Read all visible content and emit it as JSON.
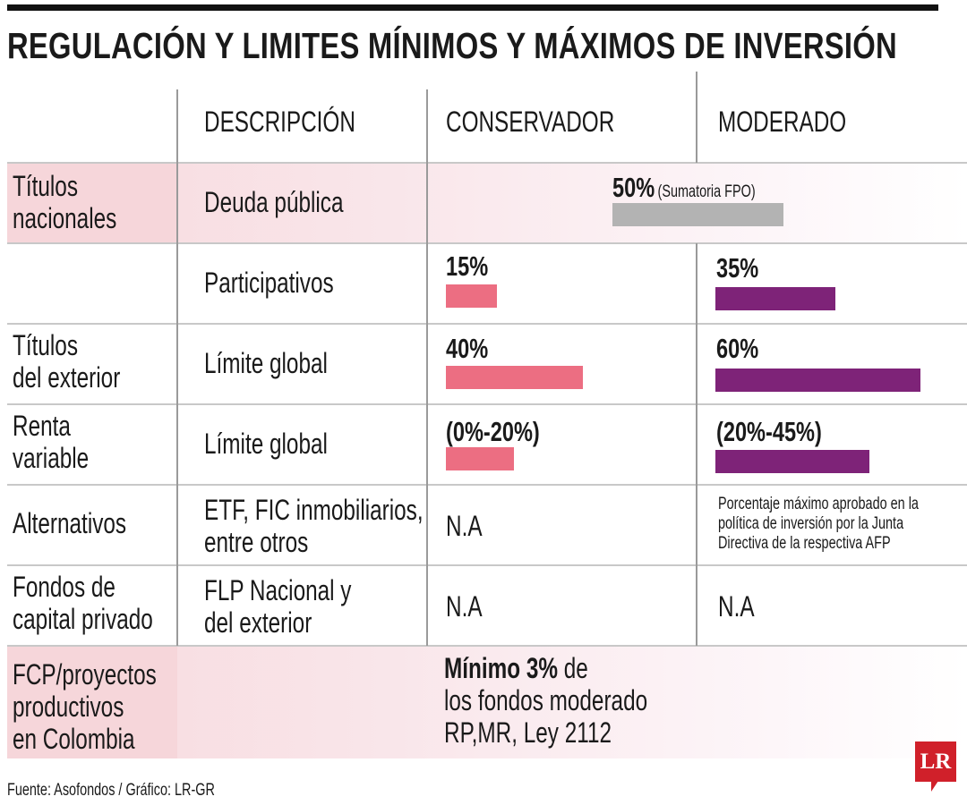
{
  "title": "REGULACIÓN Y LIMITES MÍNIMOS Y MÁXIMOS DE INVERSIÓN",
  "colors": {
    "conservador": "#ec6e82",
    "moderado": "#7e2378",
    "shared": "#b3b3b3",
    "highlight": "#f6d6da"
  },
  "chart_data": {
    "type": "table",
    "columns": [
      "",
      "DESCRIPCIÓN",
      "CONSERVADOR",
      "MODERADO"
    ],
    "rows": [
      {
        "label": "Títulos nacionales",
        "description": "Deuda pública",
        "shared": {
          "text": "50%",
          "note": "(Sumatoria FPO)",
          "value": 50
        }
      },
      {
        "label": "",
        "description": "Participativos",
        "conservador": {
          "text": "15%",
          "value": 15
        },
        "moderado": {
          "text": "35%",
          "value": 35
        }
      },
      {
        "label": "Títulos del exterior",
        "description": "Límite global",
        "conservador": {
          "text": "40%",
          "value": 40
        },
        "moderado": {
          "text": "60%",
          "value": 60
        }
      },
      {
        "label": "Renta variable",
        "description": "Límite global",
        "conservador": {
          "text": "(0%-20%)",
          "value": 20
        },
        "moderado": {
          "text": "(20%-45%)",
          "value": 45
        }
      },
      {
        "label": "Alternativos",
        "description": "ETF, FIC inmobiliarios, entre otros",
        "conservador": {
          "text": "N.A"
        },
        "moderado": {
          "text": "Porcentaje máximo aprobado en la política de inversión por la Junta Directiva de la respectiva AFP"
        }
      },
      {
        "label": "Fondos de capital privado",
        "description": "FLP Nacional y del exterior",
        "conservador": {
          "text": "N.A"
        },
        "moderado": {
          "text": "N.A"
        }
      },
      {
        "label": "FCP/proyectos productivos en Colombia",
        "shared": {
          "bold": "Mínimo 3%",
          "text": " de los fondos moderado RP,MR, Ley 2112"
        }
      }
    ]
  },
  "labels": {
    "r1": [
      "Títulos",
      "nacionales"
    ],
    "r3": [
      "Títulos",
      "del exterior"
    ],
    "r4": [
      "Renta",
      "variable"
    ],
    "r6": [
      "Fondos de",
      "capital privado"
    ],
    "r7": [
      "FCP/proyectos",
      "productivos",
      "en Colombia"
    ],
    "r5desc": [
      "ETF, FIC inmobiliarios,",
      "entre otros"
    ],
    "r6desc": [
      "FLP Nacional y",
      "del exterior"
    ],
    "r5mod": [
      "Porcentaje máximo aprobado en la",
      "política de inversión por la Junta",
      "Directiva de la respectiva AFP"
    ],
    "r7text": [
      "de",
      "los fondos moderado",
      "RP,MR, Ley 2112"
    ]
  },
  "source": "Fuente: Asofondos / Gráfico: LR-GR",
  "logo": "LR"
}
